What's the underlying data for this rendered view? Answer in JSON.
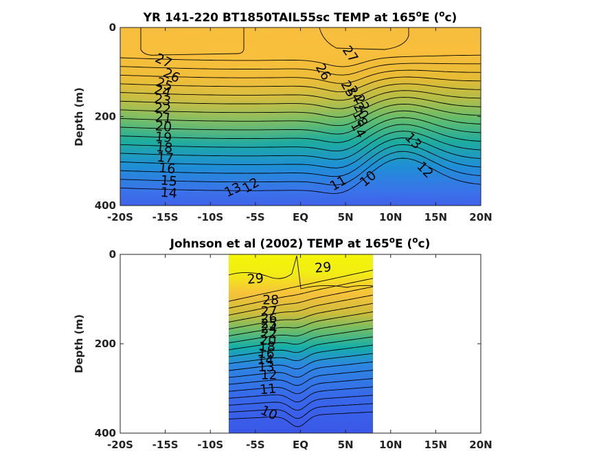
{
  "chart_data": [
    {
      "type": "heatmap",
      "title": "YR 141-220 BT1850TAIL55sc TEMP at 165°E (°c)",
      "title_parts": {
        "main": "YR 141-220 BT1850TAIL55sc TEMP at 165",
        "deg": "o",
        "e": "E (",
        "deg2": "o",
        "c": "c)"
      },
      "ylabel": "Depth (m)",
      "xlabel": "",
      "xlim": [
        -20,
        20
      ],
      "ylim": [
        400,
        0
      ],
      "x_ticks": [
        -20,
        -15,
        -10,
        -5,
        0,
        5,
        10,
        15,
        20
      ],
      "x_tick_labels": [
        "-20S",
        "-15S",
        "-10S",
        "-5S",
        "EQ",
        "5N",
        "10N",
        "15N",
        "20N"
      ],
      "y_ticks": [
        0,
        200,
        400
      ],
      "y_tick_labels": [
        "0",
        "200",
        "400"
      ],
      "data_extent_lat": [
        -20,
        20
      ],
      "colormap": "parula",
      "color_range_degC": [
        8,
        30
      ],
      "contour_labels": [
        {
          "text": "27",
          "lat": -15.2,
          "depth": 75,
          "rot": 25
        },
        {
          "text": "26",
          "lat": -14.3,
          "depth": 108,
          "rot": 25
        },
        {
          "text": "25",
          "lat": -15.1,
          "depth": 128,
          "rot": 20
        },
        {
          "text": "24",
          "lat": -15.3,
          "depth": 143,
          "rot": 15
        },
        {
          "text": "23",
          "lat": -15.3,
          "depth": 163,
          "rot": 10
        },
        {
          "text": "22",
          "lat": -15.3,
          "depth": 183,
          "rot": 8
        },
        {
          "text": "21",
          "lat": -15.2,
          "depth": 203,
          "rot": 5
        },
        {
          "text": "20",
          "lat": -15.2,
          "depth": 223,
          "rot": 5
        },
        {
          "text": "19",
          "lat": -15.2,
          "depth": 247,
          "rot": 5
        },
        {
          "text": "18",
          "lat": -15.1,
          "depth": 270,
          "rot": 5
        },
        {
          "text": "17",
          "lat": -15.0,
          "depth": 293,
          "rot": 5
        },
        {
          "text": "16",
          "lat": -14.8,
          "depth": 317,
          "rot": 5
        },
        {
          "text": "15",
          "lat": -14.6,
          "depth": 345,
          "rot": 5
        },
        {
          "text": "14",
          "lat": -14.6,
          "depth": 372,
          "rot": 5
        },
        {
          "text": "13",
          "lat": -7.5,
          "depth": 365,
          "rot": -25
        },
        {
          "text": "12",
          "lat": -5.5,
          "depth": 355,
          "rot": -30
        },
        {
          "text": "11",
          "lat": 4.2,
          "depth": 350,
          "rot": -30
        },
        {
          "text": "10",
          "lat": 7.5,
          "depth": 340,
          "rot": -40
        },
        {
          "text": "27",
          "lat": 5.5,
          "depth": 60,
          "rot": 55
        },
        {
          "text": "26",
          "lat": 2.5,
          "depth": 100,
          "rot": 60
        },
        {
          "text": "25",
          "lat": 5.3,
          "depth": 138,
          "rot": 60
        },
        {
          "text": "24",
          "lat": 6.0,
          "depth": 150,
          "rot": 60
        },
        {
          "text": "22",
          "lat": 6.8,
          "depth": 170,
          "rot": 60
        },
        {
          "text": "20",
          "lat": 6.7,
          "depth": 188,
          "rot": 60
        },
        {
          "text": "18",
          "lat": 6.6,
          "depth": 205,
          "rot": 60
        },
        {
          "text": "14",
          "lat": 6.4,
          "depth": 230,
          "rot": 60
        },
        {
          "text": "13",
          "lat": 12.5,
          "depth": 255,
          "rot": 45
        },
        {
          "text": "12",
          "lat": 13.8,
          "depth": 320,
          "rot": 45
        }
      ]
    },
    {
      "type": "heatmap",
      "title": "Johnson et al (2002) TEMP at 165°E (°c)",
      "title_parts": {
        "main": "Johnson et al (2002) TEMP at 165",
        "deg": "o",
        "e": "E (",
        "deg2": "o",
        "c": "c)"
      },
      "ylabel": "Depth (m)",
      "xlabel": "",
      "xlim": [
        -20,
        20
      ],
      "ylim": [
        400,
        0
      ],
      "x_ticks": [
        -20,
        -15,
        -10,
        -5,
        0,
        5,
        10,
        15,
        20
      ],
      "x_tick_labels": [
        "-20S",
        "-15S",
        "-10S",
        "-5S",
        "EQ",
        "5N",
        "10N",
        "15N",
        "20N"
      ],
      "y_ticks": [
        0,
        200,
        400
      ],
      "y_tick_labels": [
        "0",
        "200",
        "400"
      ],
      "data_extent_lat": [
        -8,
        8
      ],
      "colormap": "parula",
      "color_range_degC": [
        8,
        30
      ],
      "contour_labels": [
        {
          "text": "29",
          "lat": -5.0,
          "depth": 55,
          "rot": -5
        },
        {
          "text": "29",
          "lat": 2.5,
          "depth": 30,
          "rot": -5
        },
        {
          "text": "28",
          "lat": -3.3,
          "depth": 102,
          "rot": 0
        },
        {
          "text": "27",
          "lat": -3.5,
          "depth": 128,
          "rot": 0
        },
        {
          "text": "26",
          "lat": -3.5,
          "depth": 143,
          "rot": 0
        },
        {
          "text": "25",
          "lat": -3.5,
          "depth": 155,
          "rot": 0
        },
        {
          "text": "24",
          "lat": -3.5,
          "depth": 166,
          "rot": 0
        },
        {
          "text": "22",
          "lat": -3.5,
          "depth": 178,
          "rot": 0
        },
        {
          "text": "20",
          "lat": -3.6,
          "depth": 192,
          "rot": 0
        },
        {
          "text": "18",
          "lat": -3.7,
          "depth": 207,
          "rot": 0
        },
        {
          "text": "16",
          "lat": -3.8,
          "depth": 222,
          "rot": 0
        },
        {
          "text": "14",
          "lat": -3.9,
          "depth": 236,
          "rot": 0
        },
        {
          "text": "13",
          "lat": -3.8,
          "depth": 252,
          "rot": 0
        },
        {
          "text": "12",
          "lat": -3.5,
          "depth": 270,
          "rot": 0
        },
        {
          "text": "11",
          "lat": -3.6,
          "depth": 302,
          "rot": -5
        },
        {
          "text": "10",
          "lat": -3.5,
          "depth": 355,
          "rot": 25
        }
      ]
    }
  ]
}
